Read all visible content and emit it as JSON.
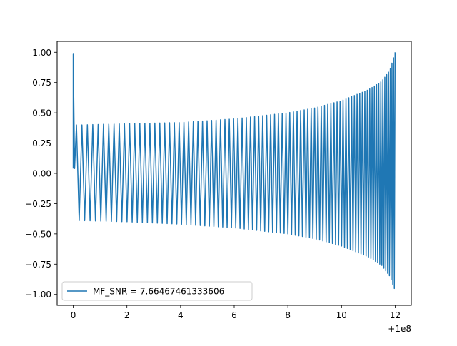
{
  "chart_data": {
    "type": "line",
    "title": "",
    "xlabel": "",
    "ylabel": "",
    "x_offset_label": "+1e8",
    "xlim": [
      -0.6,
      12.6
    ],
    "ylim": [
      -1.09,
      1.09
    ],
    "x_ticks": [
      0,
      2,
      4,
      6,
      8,
      10,
      12
    ],
    "x_tick_labels": [
      "0",
      "2",
      "4",
      "6",
      "8",
      "10",
      "12"
    ],
    "y_ticks": [
      1.0,
      0.75,
      0.5,
      0.25,
      0.0,
      -0.25,
      -0.5,
      -0.75,
      -1.0
    ],
    "y_tick_labels": [
      "1.00",
      "0.75",
      "0.50",
      "0.25",
      "0.00",
      "−0.25",
      "−0.50",
      "−0.75",
      "−1.00"
    ],
    "grid": false,
    "legend_position": "lower-left",
    "series": [
      {
        "name": "MF_SNR = 7.66467461333606",
        "color": "#1f77b4",
        "description_points": {
          "x": [
            0.0,
            0.05,
            0.1,
            0.3,
            2,
            4,
            6,
            8,
            9,
            10,
            11,
            11.5,
            11.8,
            12.0
          ],
          "y_upper": [
            0.99,
            0.04,
            0.4,
            0.4,
            0.41,
            0.42,
            0.45,
            0.5,
            0.54,
            0.6,
            0.69,
            0.76,
            0.85,
            1.0
          ],
          "y_lower": [
            0.99,
            0.04,
            -0.39,
            -0.39,
            -0.4,
            -0.42,
            -0.45,
            -0.5,
            -0.54,
            -0.6,
            -0.69,
            -0.76,
            -0.85,
            -0.97
          ]
        }
      }
    ]
  }
}
